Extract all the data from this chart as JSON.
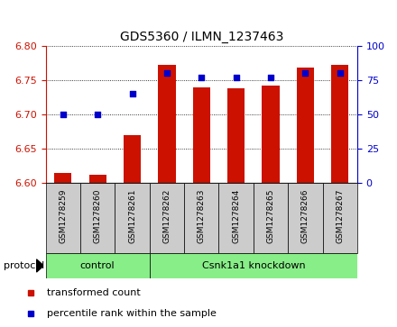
{
  "title": "GDS5360 / ILMN_1237463",
  "samples": [
    "GSM1278259",
    "GSM1278260",
    "GSM1278261",
    "GSM1278262",
    "GSM1278263",
    "GSM1278264",
    "GSM1278265",
    "GSM1278266",
    "GSM1278267"
  ],
  "bar_values": [
    6.615,
    6.612,
    6.67,
    6.772,
    6.74,
    6.738,
    6.742,
    6.768,
    6.772
  ],
  "dot_values": [
    50,
    50,
    65,
    80,
    77,
    77,
    77,
    80,
    80
  ],
  "ylim_left": [
    6.6,
    6.8
  ],
  "ylim_right": [
    0,
    100
  ],
  "yticks_left": [
    6.6,
    6.65,
    6.7,
    6.75,
    6.8
  ],
  "yticks_right": [
    0,
    25,
    50,
    75,
    100
  ],
  "bar_color": "#cc1100",
  "dot_color": "#0000cc",
  "control_indices": [
    0,
    1,
    2
  ],
  "knockdown_indices": [
    3,
    4,
    5,
    6,
    7,
    8
  ],
  "control_label": "control",
  "knockdown_label": "Csnk1a1 knockdown",
  "protocol_label": "protocol",
  "legend_bar": "transformed count",
  "legend_dot": "percentile rank within the sample",
  "group_bg_color": "#88ee88",
  "tick_label_area_bg": "#cccccc",
  "bg_white": "#ffffff"
}
